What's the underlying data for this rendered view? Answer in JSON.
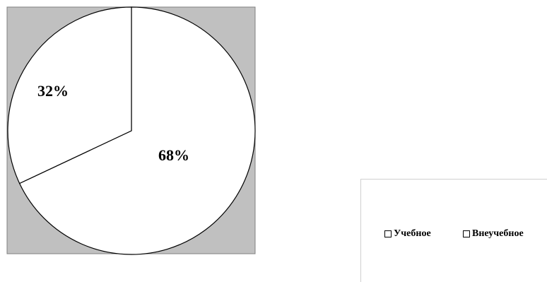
{
  "chart_data": {
    "type": "pie",
    "slices": [
      {
        "label": "Учебное",
        "value": 68,
        "display": "68%"
      },
      {
        "label": "Внеучебное",
        "value": 32,
        "display": "32%"
      }
    ],
    "legend": [
      "Учебное",
      "Внеучебное"
    ],
    "legend_position": "bottom-right",
    "colors": {
      "plot_background": "#c0c0c0",
      "slice_fill": "#ffffff",
      "outline": "#000000"
    }
  }
}
